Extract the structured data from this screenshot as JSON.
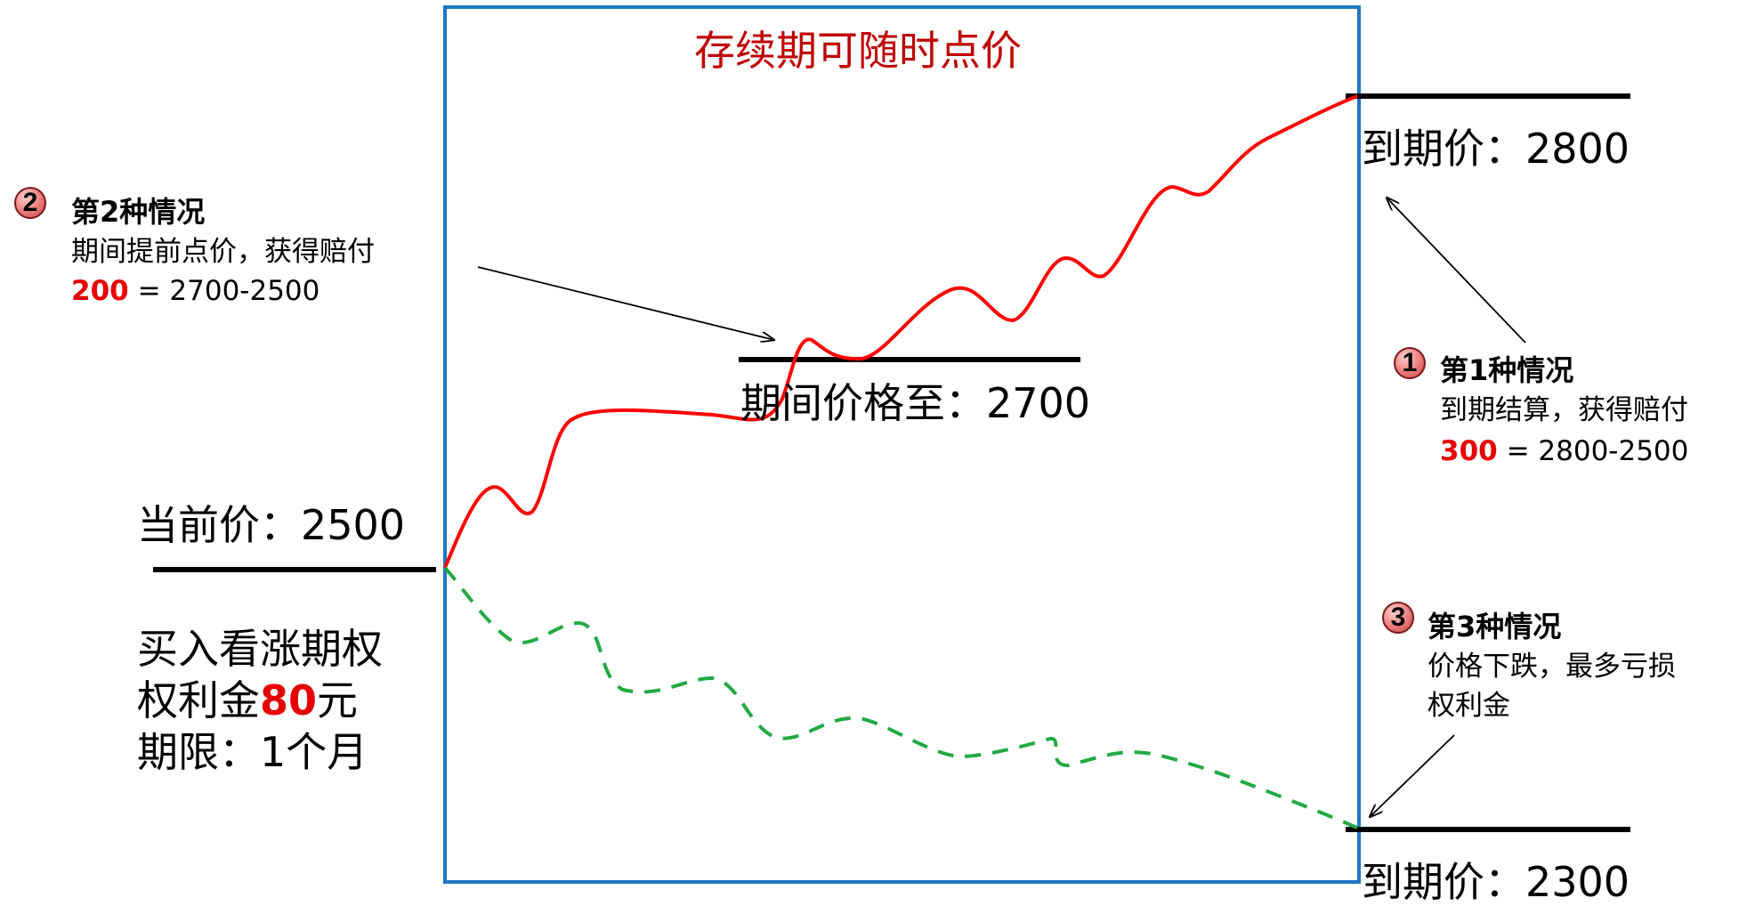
{
  "period_title": "存续期可随时点价",
  "current_price": {
    "label": "当前价：",
    "value": "2500"
  },
  "option_info": {
    "line1": "买入看涨期权",
    "line2_prefix": "权利金",
    "premium": "80",
    "line2_suffix": "元",
    "line3": "期限：1个月"
  },
  "mid_price": {
    "label": "期间价格至：",
    "value": "2700"
  },
  "expiry_high": {
    "label": "到期价：",
    "value": "2800"
  },
  "expiry_low": {
    "label": "到期价：",
    "value": "2300"
  },
  "case1": {
    "badge": "1",
    "title": "第1种情况",
    "desc": "到期结算，获得赔付",
    "payout": "300",
    "formula": " = 2800-2500"
  },
  "case2": {
    "badge": "2",
    "title": "第2种情况",
    "desc": "期间提前点价，获得赔付",
    "payout": "200",
    "formula": " = 2700-2500"
  },
  "case3": {
    "badge": "3",
    "title": "第3种情况",
    "desc_line1": "价格下跌，最多亏损",
    "desc_line2": "权利金"
  },
  "colors": {
    "box_border": "#1f77c4",
    "up_path": "#ff0000",
    "down_path": "#22aa44",
    "title": "#c00000",
    "highlight": "#e60000"
  }
}
